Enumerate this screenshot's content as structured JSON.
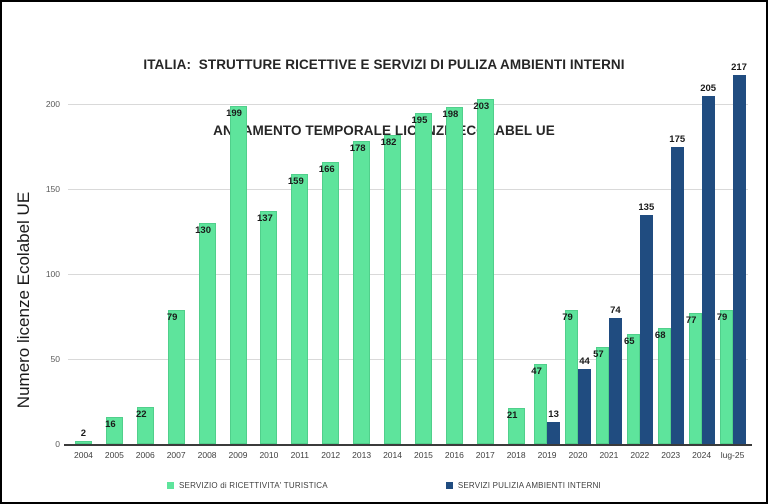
{
  "title": {
    "line1": "ITALIA:  STRUTTURE RICETTIVE E SERVIZI DI PULIZA AMBIENTI INTERNI",
    "line2": "ANDAMENTO TEMPORALE LICENZE ECOLABEL UE"
  },
  "y_axis": {
    "title": "Numero licenze Ecolabel UE"
  },
  "colors": {
    "green": "#5ee49c",
    "blue": "#204c80",
    "grid": "#d9d9d9",
    "axis": "#3b3b3b",
    "label_text": "#1a1a1a"
  },
  "chart_data": {
    "type": "bar",
    "title": "ITALIA: STRUTTURE RICETTIVE E SERVIZI DI PULIZA AMBIENTI INTERNI - ANDAMENTO TEMPORALE LICENZE ECOLABEL UE",
    "xlabel": "",
    "ylabel": "Numero licenze Ecolabel UE",
    "ylim": [
      0,
      220
    ],
    "yticks": [
      0,
      50,
      100,
      150,
      200
    ],
    "grid": "horizontal",
    "legend_position": "bottom",
    "categories": [
      "2004",
      "2005",
      "2006",
      "2007",
      "2008",
      "2009",
      "2010",
      "2011",
      "2012",
      "2013",
      "2014",
      "2015",
      "2016",
      "2017",
      "2018",
      "2019",
      "2020",
      "2021",
      "2022",
      "2023",
      "2024",
      "lug-25"
    ],
    "series": [
      {
        "name": "SERVIZIO di RICETTIVITA' TURISTICA",
        "color": "#5ee49c",
        "values": [
          2,
          16,
          22,
          79,
          130,
          199,
          137,
          159,
          166,
          178,
          182,
          195,
          198,
          203,
          21,
          47,
          79,
          57,
          65,
          68,
          77,
          79
        ]
      },
      {
        "name": "SERVIZI PULIZIA AMBIENTI INTERNI",
        "color": "#204c80",
        "values": [
          null,
          null,
          null,
          null,
          null,
          null,
          null,
          null,
          null,
          null,
          null,
          null,
          null,
          null,
          null,
          13,
          44,
          74,
          135,
          175,
          205,
          217
        ]
      }
    ]
  }
}
